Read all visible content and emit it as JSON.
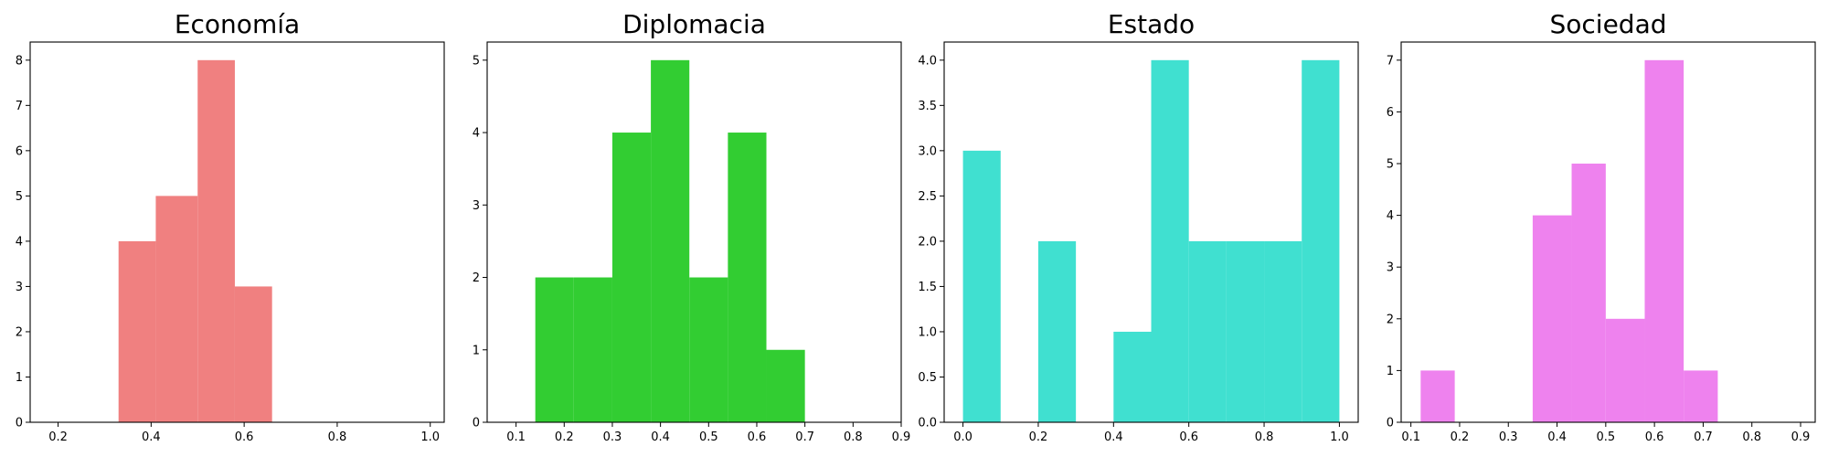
{
  "chart_data": [
    {
      "type": "histogram",
      "title": "Economía",
      "color": "#f08080",
      "bins": [
        [
          0.33,
          0.41
        ],
        [
          0.41,
          0.5
        ],
        [
          0.5,
          0.58
        ],
        [
          0.58,
          0.66
        ]
      ],
      "counts": [
        4,
        5,
        8,
        3
      ],
      "xlim": [
        0.14,
        1.03
      ],
      "ylim": [
        0,
        8.4
      ],
      "xticks": [
        0.2,
        0.4,
        0.6,
        0.8,
        1.0
      ],
      "xtick_labels": [
        "0.2",
        "0.4",
        "0.6",
        "0.8",
        "1.0"
      ],
      "yticks": [
        0,
        1,
        2,
        3,
        4,
        5,
        6,
        7,
        8
      ],
      "ytick_labels": [
        "0",
        "1",
        "2",
        "3",
        "4",
        "5",
        "6",
        "7",
        "8"
      ],
      "grid": false
    },
    {
      "type": "histogram",
      "title": "Diplomacia",
      "color": "#32cd32",
      "bins": [
        [
          0.14,
          0.22
        ],
        [
          0.22,
          0.3
        ],
        [
          0.3,
          0.38
        ],
        [
          0.38,
          0.46
        ],
        [
          0.46,
          0.54
        ],
        [
          0.54,
          0.62
        ],
        [
          0.62,
          0.7
        ]
      ],
      "counts": [
        2,
        2,
        4,
        5,
        2,
        4,
        1
      ],
      "xlim": [
        0.04,
        0.9
      ],
      "ylim": [
        0,
        5.25
      ],
      "xticks": [
        0.1,
        0.2,
        0.3,
        0.4,
        0.5,
        0.6,
        0.7,
        0.8,
        0.9
      ],
      "xtick_labels": [
        "0.1",
        "0.2",
        "0.3",
        "0.4",
        "0.5",
        "0.6",
        "0.7",
        "0.8",
        "0.9"
      ],
      "yticks": [
        0,
        1,
        2,
        3,
        4,
        5
      ],
      "ytick_labels": [
        "0",
        "1",
        "2",
        "3",
        "4",
        "5"
      ],
      "grid": false
    },
    {
      "type": "histogram",
      "title": "Estado",
      "color": "#40e0d0",
      "bins": [
        [
          0.0,
          0.1
        ],
        [
          0.1,
          0.2
        ],
        [
          0.2,
          0.3
        ],
        [
          0.3,
          0.4
        ],
        [
          0.4,
          0.5
        ],
        [
          0.5,
          0.6
        ],
        [
          0.6,
          0.7
        ],
        [
          0.7,
          0.8
        ],
        [
          0.8,
          0.9
        ],
        [
          0.9,
          1.0
        ]
      ],
      "counts": [
        3,
        0,
        2,
        0,
        1,
        4,
        2,
        2,
        2,
        4
      ],
      "xlim": [
        -0.05,
        1.05
      ],
      "ylim": [
        0,
        4.2
      ],
      "xticks": [
        0.0,
        0.2,
        0.4,
        0.6,
        0.8,
        1.0
      ],
      "xtick_labels": [
        "0.0",
        "0.2",
        "0.4",
        "0.6",
        "0.8",
        "1.0"
      ],
      "yticks": [
        0,
        0.5,
        1,
        1.5,
        2,
        2.5,
        3,
        3.5,
        4
      ],
      "ytick_labels": [
        "0.0",
        "0.5",
        "1.0",
        "1.5",
        "2.0",
        "2.5",
        "3.0",
        "3.5",
        "4.0"
      ],
      "grid": false
    },
    {
      "type": "histogram",
      "title": "Sociedad",
      "color": "#ee82ee",
      "bins": [
        [
          0.12,
          0.19
        ],
        [
          0.19,
          0.27
        ],
        [
          0.27,
          0.35
        ],
        [
          0.35,
          0.43
        ],
        [
          0.43,
          0.5
        ],
        [
          0.5,
          0.58
        ],
        [
          0.58,
          0.66
        ],
        [
          0.66,
          0.73
        ]
      ],
      "counts": [
        1,
        0,
        0,
        4,
        5,
        2,
        7,
        1
      ],
      "xlim": [
        0.08,
        0.93
      ],
      "ylim": [
        0,
        7.35
      ],
      "xticks": [
        0.1,
        0.2,
        0.3,
        0.4,
        0.5,
        0.6,
        0.7,
        0.8,
        0.9
      ],
      "xtick_labels": [
        "0.1",
        "0.2",
        "0.3",
        "0.4",
        "0.5",
        "0.6",
        "0.7",
        "0.8",
        "0.9"
      ],
      "yticks": [
        0,
        1,
        2,
        3,
        4,
        5,
        6,
        7
      ],
      "ytick_labels": [
        "0",
        "1",
        "2",
        "3",
        "4",
        "5",
        "6",
        "7"
      ],
      "grid": false
    }
  ]
}
